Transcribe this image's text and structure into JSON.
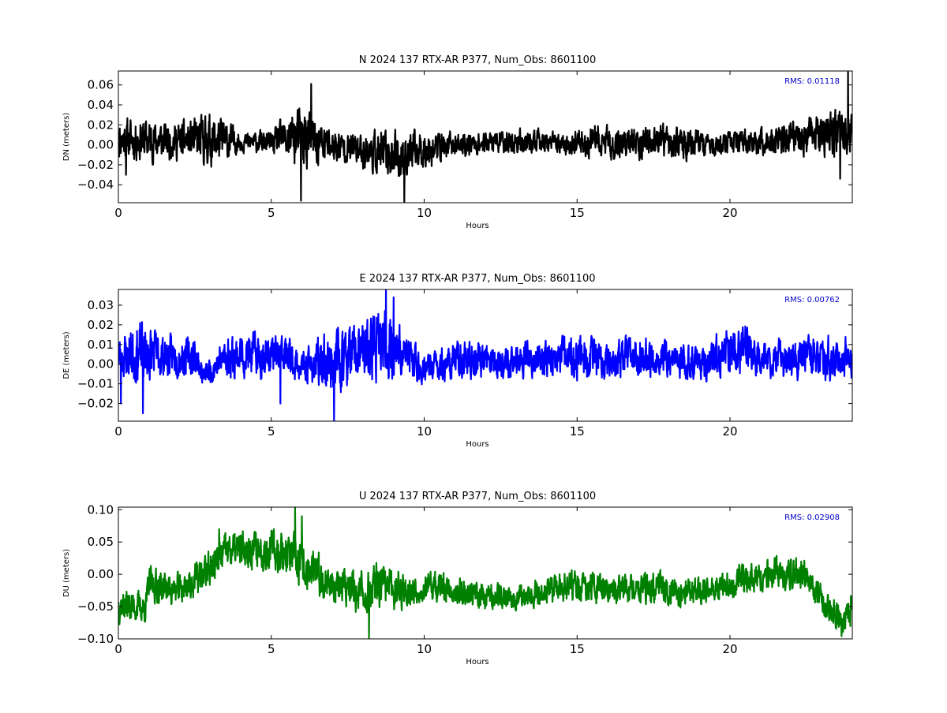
{
  "chart_data": [
    {
      "type": "line",
      "title": "N 2024 137 RTX-AR  P377, Num_Obs: 8601100",
      "xlabel": "Hours",
      "ylabel": "DN (meters)",
      "xlim": [
        0,
        24
      ],
      "ylim": [
        -0.058,
        0.074
      ],
      "xticks": [
        0,
        5,
        10,
        15,
        20
      ],
      "yticks": [
        -0.04,
        -0.02,
        0.0,
        0.02,
        0.04,
        0.06
      ],
      "ytick_labels": [
        "−0.04",
        "−0.02",
        "0.00",
        "0.02",
        "0.04",
        "0.06"
      ],
      "annotation": "RMS:  0.01118",
      "grid": false,
      "series": [
        {
          "color": "#000000",
          "seed": 11,
          "envelope": {
            "hours": [
              0,
              1,
              2,
              3,
              3.5,
              4,
              5,
              5.8,
              6.2,
              6.8,
              7.5,
              8.5,
              9.2,
              10,
              11,
              12,
              13,
              14,
              14.5,
              15.5,
              17,
              18.5,
              19.5,
              20.5,
              21.5,
              22.5,
              23.5,
              24
            ],
            "center": [
              0.006,
              0.005,
              0.004,
              0.005,
              0.004,
              0.003,
              0.002,
              0.008,
              0.005,
              0.0,
              -0.003,
              -0.008,
              -0.012,
              -0.004,
              0.0,
              0.002,
              0.003,
              0.002,
              0.0,
              0.002,
              0.002,
              0.002,
              0.0,
              0.002,
              0.004,
              0.008,
              0.012,
              0.012
            ],
            "amp": [
              0.025,
              0.026,
              0.022,
              0.032,
              0.026,
              0.012,
              0.014,
              0.036,
              0.036,
              0.024,
              0.018,
              0.026,
              0.03,
              0.022,
              0.015,
              0.014,
              0.016,
              0.014,
              0.012,
              0.02,
              0.02,
              0.02,
              0.014,
              0.014,
              0.018,
              0.022,
              0.03,
              0.028
            ]
          },
          "spikes": [
            {
              "hour": 23.86,
              "value": 0.073
            },
            {
              "hour": 23.6,
              "value": -0.034
            },
            {
              "hour": 5.97,
              "value": -0.056
            },
            {
              "hour": 6.3,
              "value": 0.061
            },
            {
              "hour": 9.35,
              "value": -0.057
            },
            {
              "hour": 0.25,
              "value": -0.03
            }
          ]
        }
      ]
    },
    {
      "type": "line",
      "title": "E 2024 137 RTX-AR  P377, Num_Obs: 8601100",
      "xlabel": "Hours",
      "ylabel": "DE (meters)",
      "xlim": [
        0,
        24
      ],
      "ylim": [
        -0.029,
        0.038
      ],
      "xticks": [
        0,
        5,
        10,
        15,
        20
      ],
      "yticks": [
        -0.02,
        -0.01,
        0.0,
        0.01,
        0.02,
        0.03
      ],
      "ytick_labels": [
        "−0.02",
        "−0.01",
        "0.00",
        "0.01",
        "0.02",
        "0.03"
      ],
      "annotation": "RMS:  0.00762",
      "grid": false,
      "series": [
        {
          "color": "#0000ff",
          "seed": 23,
          "envelope": {
            "hours": [
              0,
              0.8,
              1.5,
              2.5,
              2.8,
              3.5,
              4.5,
              5.5,
              6.0,
              7.0,
              8.0,
              8.7,
              9.3,
              10,
              11,
              12,
              13,
              14,
              15,
              16,
              17,
              18,
              19,
              20,
              20.5,
              21.2,
              22,
              23,
              24
            ],
            "center": [
              0.004,
              0.006,
              0.004,
              0.004,
              -0.006,
              0.004,
              0.005,
              0.004,
              -0.002,
              0.002,
              0.006,
              0.01,
              0.006,
              -0.003,
              0.002,
              0.002,
              0.002,
              0.003,
              0.003,
              0.002,
              0.004,
              0.002,
              0.001,
              0.006,
              0.008,
              0.002,
              0.003,
              0.004,
              0.004
            ],
            "amp": [
              0.013,
              0.02,
              0.013,
              0.012,
              0.007,
              0.013,
              0.014,
              0.013,
              0.009,
              0.02,
              0.018,
              0.022,
              0.015,
              0.01,
              0.012,
              0.011,
              0.011,
              0.011,
              0.014,
              0.011,
              0.014,
              0.011,
              0.011,
              0.015,
              0.016,
              0.01,
              0.013,
              0.013,
              0.013
            ]
          },
          "spikes": [
            {
              "hour": 8.75,
              "value": 0.038
            },
            {
              "hour": 7.05,
              "value": -0.029
            },
            {
              "hour": 0.8,
              "value": -0.025
            },
            {
              "hour": 9.0,
              "value": 0.034
            },
            {
              "hour": 5.3,
              "value": -0.02
            },
            {
              "hour": 0.08,
              "value": -0.02
            }
          ]
        }
      ]
    },
    {
      "type": "line",
      "title": "U 2024 137 RTX-AR  P377, Num_Obs: 8601100",
      "xlabel": "Hours",
      "ylabel": "DU (meters)",
      "xlim": [
        0,
        24
      ],
      "ylim": [
        -0.1,
        0.104
      ],
      "xticks": [
        0,
        5,
        10,
        15,
        20
      ],
      "yticks": [
        -0.1,
        -0.05,
        0.0,
        0.05,
        0.1
      ],
      "ytick_labels": [
        "−0.10",
        "−0.05",
        "0.00",
        "0.05",
        "0.10"
      ],
      "annotation": "RMS:  0.02908",
      "grid": false,
      "series": [
        {
          "color": "#008000",
          "seed": 37,
          "envelope": {
            "hours": [
              0,
              0.5,
              0.9,
              1.0,
              2.0,
              2.8,
              3.5,
              4.5,
              5.5,
              6.0,
              7.0,
              8.0,
              8.5,
              9.5,
              10.5,
              11.5,
              12.5,
              13.5,
              14.5,
              15.5,
              16.5,
              17.5,
              18.5,
              19.5,
              20.5,
              21.5,
              22.5,
              23.0,
              23.4,
              23.7,
              24
            ],
            "center": [
              -0.045,
              -0.05,
              -0.05,
              -0.015,
              -0.025,
              0.0,
              0.035,
              0.04,
              0.035,
              0.01,
              -0.015,
              -0.03,
              -0.02,
              -0.025,
              -0.02,
              -0.03,
              -0.035,
              -0.03,
              -0.02,
              -0.02,
              -0.025,
              -0.02,
              -0.025,
              -0.025,
              -0.005,
              0.0,
              0.0,
              -0.04,
              -0.06,
              -0.075,
              -0.05
            ],
            "amp": [
              0.035,
              0.03,
              0.03,
              0.035,
              0.03,
              0.035,
              0.035,
              0.035,
              0.045,
              0.045,
              0.035,
              0.04,
              0.045,
              0.03,
              0.03,
              0.028,
              0.025,
              0.025,
              0.03,
              0.03,
              0.03,
              0.03,
              0.03,
              0.025,
              0.03,
              0.03,
              0.03,
              0.025,
              0.03,
              0.025,
              0.035
            ]
          },
          "spikes": [
            {
              "hour": 5.78,
              "value": 0.104
            },
            {
              "hour": 8.2,
              "value": -0.1
            },
            {
              "hour": 3.3,
              "value": 0.07
            },
            {
              "hour": 6.0,
              "value": 0.09
            },
            {
              "hour": 23.65,
              "value": -0.096
            }
          ]
        }
      ]
    }
  ]
}
